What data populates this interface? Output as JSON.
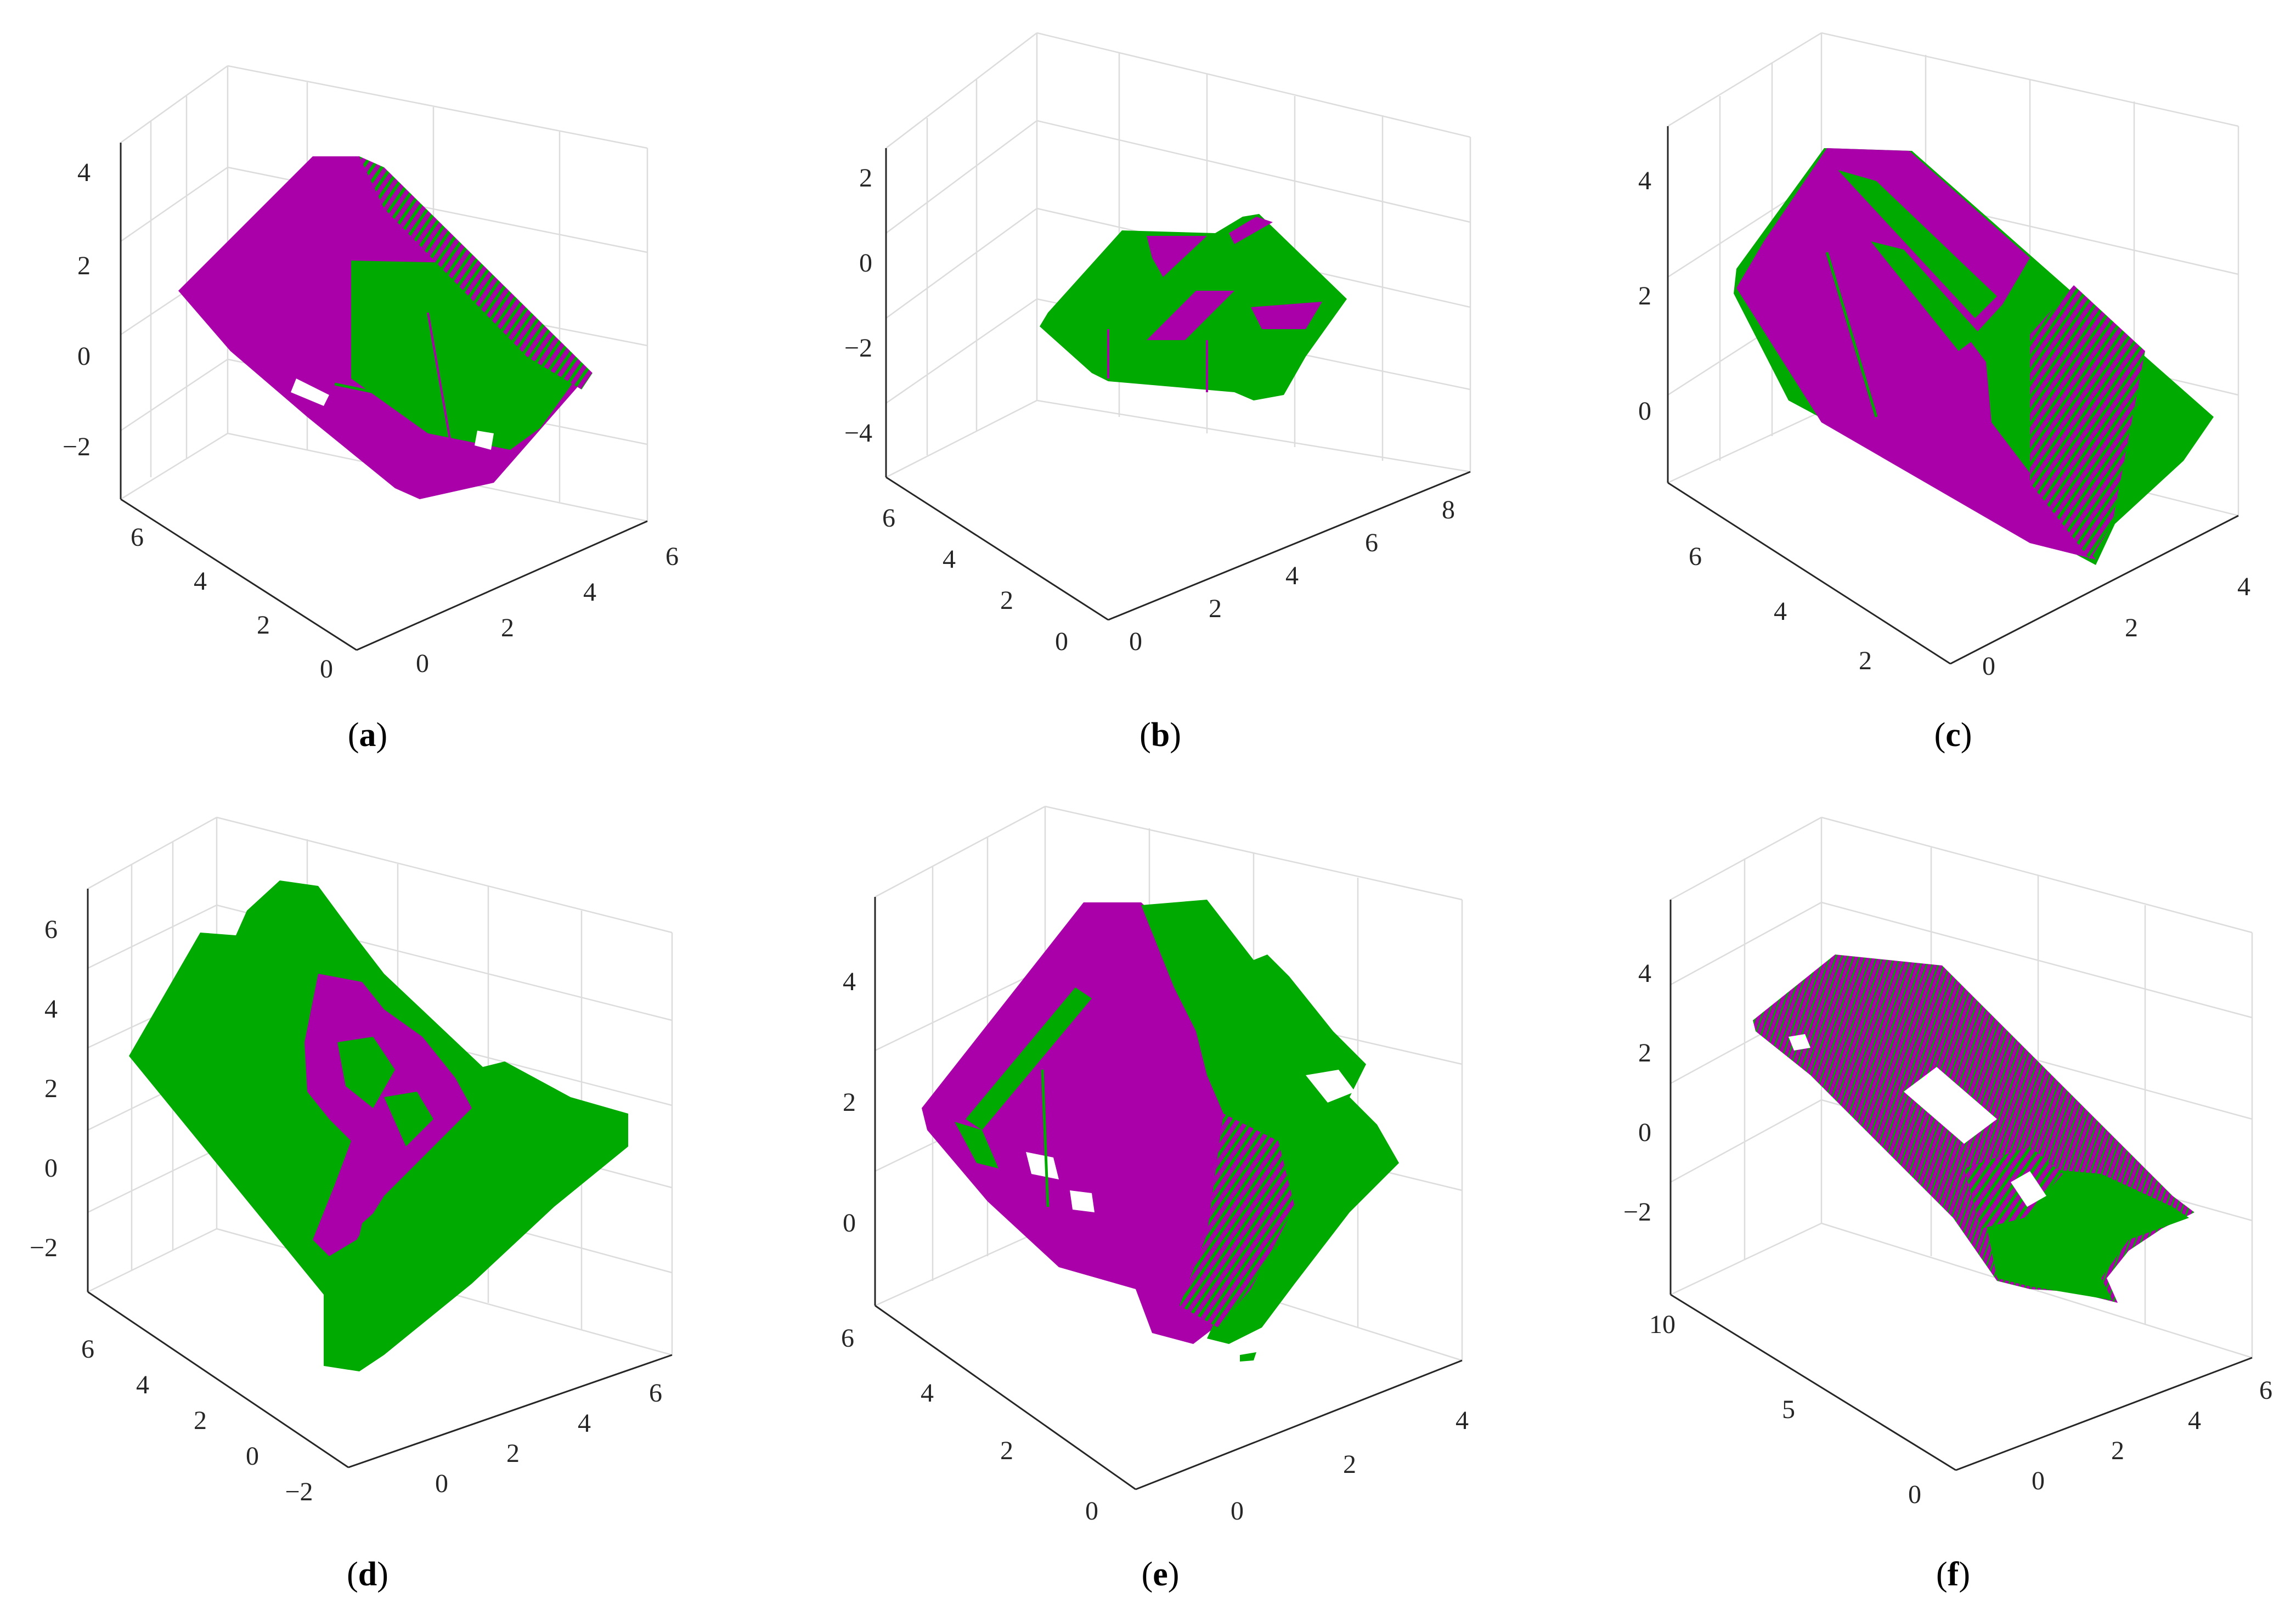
{
  "figure": {
    "colors": {
      "point_set_1": "#aa00aa",
      "point_set_2": "#00aa00"
    }
  },
  "chart_data": [
    {
      "type": "scatter",
      "panel": "(a)",
      "caption_label": "a",
      "x_ticks": [
        "0",
        "2",
        "4",
        "6"
      ],
      "y_ticks": [
        "0",
        "2",
        "4",
        "6"
      ],
      "z_ticks": [
        "−2",
        "0",
        "2",
        "4"
      ],
      "xlim": [
        -0.5,
        6.5
      ],
      "ylim": [
        -0.5,
        7.5
      ],
      "zlim": [
        -3,
        4.5
      ],
      "grid": true,
      "series": [
        {
          "color": "#aa00aa"
        },
        {
          "color": "#00aa00"
        }
      ]
    },
    {
      "type": "scatter",
      "panel": "(b)",
      "caption_label": "b",
      "x_ticks": [
        "0",
        "2",
        "4",
        "6",
        "8"
      ],
      "y_ticks": [
        "0",
        "2",
        "4",
        "6"
      ],
      "z_ticks": [
        "−4",
        "−2",
        "0",
        "2"
      ],
      "xlim": [
        -0.5,
        9
      ],
      "ylim": [
        -0.5,
        7
      ],
      "zlim": [
        -5,
        2.5
      ],
      "grid": true,
      "series": [
        {
          "color": "#aa00aa"
        },
        {
          "color": "#00aa00"
        }
      ]
    },
    {
      "type": "scatter",
      "panel": "(c)",
      "caption_label": "c",
      "x_ticks": [
        "0",
        "2",
        "4"
      ],
      "y_ticks": [
        "2",
        "4",
        "6"
      ],
      "z_ticks": [
        "0",
        "2",
        "4"
      ],
      "xlim": [
        -1,
        4.5
      ],
      "ylim": [
        1.5,
        7.5
      ],
      "zlim": [
        -1,
        4.5
      ],
      "grid": true,
      "series": [
        {
          "color": "#aa00aa"
        },
        {
          "color": "#00aa00"
        }
      ]
    },
    {
      "type": "scatter",
      "panel": "(d)",
      "caption_label": "d",
      "x_ticks": [
        "0",
        "2",
        "4",
        "6"
      ],
      "y_ticks": [
        "−2",
        "0",
        "2",
        "4",
        "6"
      ],
      "z_ticks": [
        "−2",
        "0",
        "2",
        "4",
        "6"
      ],
      "xlim": [
        -1,
        7
      ],
      "ylim": [
        -2.5,
        7.5
      ],
      "zlim": [
        -3,
        7
      ],
      "grid": true,
      "series": [
        {
          "color": "#aa00aa"
        },
        {
          "color": "#00aa00"
        }
      ]
    },
    {
      "type": "scatter",
      "panel": "(e)",
      "caption_label": "e",
      "x_ticks": [
        "0",
        "2",
        "4"
      ],
      "y_ticks": [
        "0",
        "2",
        "4",
        "6"
      ],
      "z_ticks": [
        "0",
        "2",
        "4"
      ],
      "xlim": [
        -0.5,
        4.5
      ],
      "ylim": [
        -0.5,
        6.5
      ],
      "zlim": [
        -1,
        5.5
      ],
      "grid": true,
      "series": [
        {
          "color": "#aa00aa"
        },
        {
          "color": "#00aa00"
        }
      ]
    },
    {
      "type": "scatter",
      "panel": "(f)",
      "caption_label": "f",
      "x_ticks": [
        "0",
        "2",
        "4",
        "6"
      ],
      "y_ticks": [
        "0",
        "5",
        "10"
      ],
      "z_ticks": [
        "−2",
        "0",
        "2",
        "4"
      ],
      "xlim": [
        -1,
        7
      ],
      "ylim": [
        -0.5,
        11
      ],
      "zlim": [
        -3,
        5.5
      ],
      "grid": true,
      "series": [
        {
          "color": "#aa00aa"
        },
        {
          "color": "#00aa00"
        }
      ]
    }
  ]
}
